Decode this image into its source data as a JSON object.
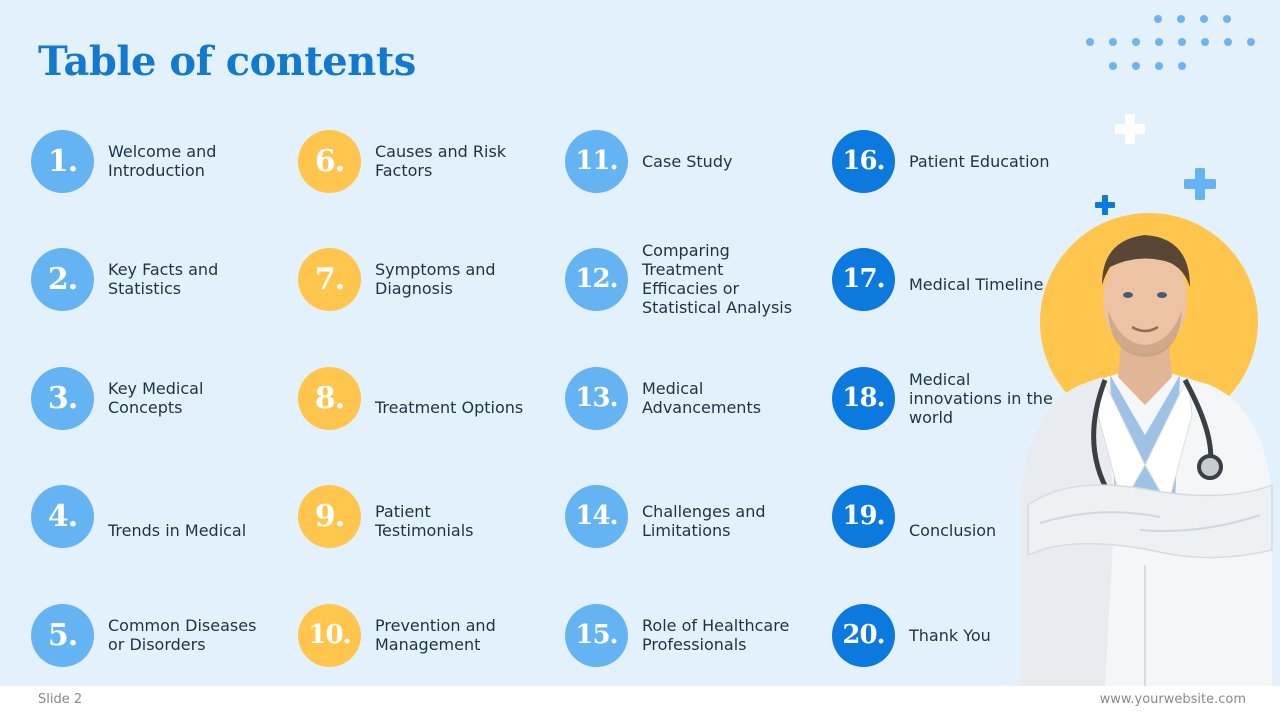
{
  "slide": {
    "title": "Table of contents",
    "footer_left": "Slide 2",
    "footer_right": "www.yourwebsite.com"
  },
  "colors": {
    "background": "#e3f1fc",
    "title": "#1279cf",
    "circle_light_blue": "#64b4f4",
    "circle_yellow": "#ffc54d",
    "circle_dark_blue": "#0b79de"
  },
  "toc": [
    {
      "number": "1.",
      "label": "Welcome and\nIntroduction"
    },
    {
      "number": "2.",
      "label": "Key Facts and\nStatistics"
    },
    {
      "number": "3.",
      "label": "Key Medical\nConcepts"
    },
    {
      "number": "4.",
      "label": "Trends in Medical"
    },
    {
      "number": "5.",
      "label": "Common Diseases\nor Disorders"
    },
    {
      "number": "6.",
      "label": "Causes and Risk\nFactors"
    },
    {
      "number": "7.",
      "label": "Symptoms and\nDiagnosis"
    },
    {
      "number": "8.",
      "label": "Treatment Options"
    },
    {
      "number": "9.",
      "label": "Patient\nTestimonials"
    },
    {
      "number": "10.",
      "label": "Prevention and\nManagement"
    },
    {
      "number": "11.",
      "label": "Case Study"
    },
    {
      "number": "12.",
      "label": "Comparing\nTreatment\nEfficacies or\nStatistical Analysis"
    },
    {
      "number": "13.",
      "label": "Medical\nAdvancements"
    },
    {
      "number": "14.",
      "label": "Challenges and\nLimitations"
    },
    {
      "number": "15.",
      "label": "Role of Healthcare\nProfessionals"
    },
    {
      "number": "16.",
      "label": "Patient Education"
    },
    {
      "number": "17.",
      "label": "Medical Timeline"
    },
    {
      "number": "18.",
      "label": "Medical\ninnovations in the\nworld"
    },
    {
      "number": "19.",
      "label": "Conclusion"
    },
    {
      "number": "20.",
      "label": "Thank You"
    }
  ],
  "decorations": {
    "photo": "doctor-photo",
    "icons": [
      "dots-pattern",
      "plus-icon"
    ]
  }
}
